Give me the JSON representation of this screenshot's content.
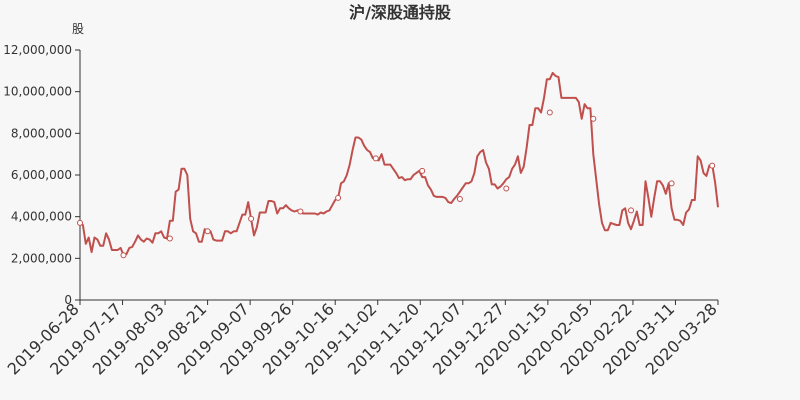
{
  "chart_data": {
    "type": "line",
    "title": "沪/深股通持股",
    "ylabel": "股",
    "ylim": [
      0,
      12000000
    ],
    "yticks": [
      0,
      2000000,
      4000000,
      6000000,
      8000000,
      10000000,
      12000000
    ],
    "ytick_labels": [
      "0",
      "2,000,000",
      "4,000,000",
      "6,000,000",
      "8,000,000",
      "10,000,000",
      "12,000,000"
    ],
    "x_tick_labels": [
      "2019-06-28",
      "2019-07-17",
      "2019-08-03",
      "2019-08-21",
      "2019-09-07",
      "2019-09-26",
      "2019-10-16",
      "2019-11-02",
      "2019-11-20",
      "2019-12-07",
      "2019-12-27",
      "2020-01-15",
      "2020-02-05",
      "2020-02-22",
      "2020-03-11",
      "2020-03-28"
    ],
    "grid": false,
    "line_color": "#c0504d",
    "series": [
      {
        "values": [
          3700000,
          3600000,
          2700000,
          3000000,
          2300000,
          3000000,
          2900000,
          2600000,
          2600000,
          3200000,
          2900000,
          2400000,
          2400000,
          2400000,
          2500000,
          2150000,
          2200000,
          2500000,
          2550000,
          2800000,
          3100000,
          2900000,
          2800000,
          2950000,
          2900000,
          2750000,
          3200000,
          3200000,
          3300000,
          3000000,
          2950000,
          3800000,
          3800000,
          5200000,
          5300000,
          6300000,
          6300000,
          6000000,
          3900000,
          3300000,
          3200000,
          2800000,
          2800000,
          3400000,
          3300000,
          3300000,
          2900000,
          2850000,
          2850000,
          2850000,
          3300000,
          3300000,
          3200000,
          3300000,
          3300000,
          3700000,
          4100000,
          4100000,
          4700000,
          3900000,
          3100000,
          3500000,
          4200000,
          4200000,
          4200000,
          4750000,
          4750000,
          4700000,
          4150000,
          4400000,
          4400000,
          4550000,
          4400000,
          4300000,
          4250000,
          4300000,
          4250000,
          4150000,
          4150000,
          4150000,
          4150000,
          4150000,
          4100000,
          4200000,
          4150000,
          4250000,
          4300000,
          4550000,
          4800000,
          4900000,
          5600000,
          5700000,
          6000000,
          6500000,
          7200000,
          7800000,
          7800000,
          7700000,
          7400000,
          7200000,
          7100000,
          6800000,
          6800000,
          6700000,
          7000000,
          6500000,
          6500000,
          6500000,
          6300000,
          6100000,
          5850000,
          5900000,
          5750000,
          5800000,
          5800000,
          6000000,
          6100000,
          6200000,
          5900000,
          5900000,
          5500000,
          5300000,
          5000000,
          4950000,
          4950000,
          4950000,
          4900000,
          4700000,
          4650000,
          4850000,
          5000000,
          5200000,
          5400000,
          5600000,
          5600000,
          5700000,
          6100000,
          6900000,
          7100000,
          7200000,
          6600000,
          6300000,
          5550000,
          5550000,
          5350000,
          5450000,
          5600000,
          5800000,
          5900000,
          6300000,
          6500000,
          6900000,
          6100000,
          6400000,
          7300000,
          8400000,
          8400000,
          9200000,
          9200000,
          9000000,
          9700000,
          10600000,
          10600000,
          10900000,
          10750000,
          10700000,
          9700000,
          9700000,
          9700000,
          9700000,
          9700000,
          9700000,
          9500000,
          8700000,
          9400000,
          9200000,
          9200000,
          7000000,
          5800000,
          4600000,
          3700000,
          3350000,
          3350000,
          3700000,
          3650000,
          3600000,
          3600000,
          4300000,
          4400000,
          3700000,
          3400000,
          3800000,
          4250000,
          3600000,
          3600000,
          5700000,
          4900000,
          4000000,
          4900000,
          5700000,
          5700000,
          5500000,
          5100000,
          5600000,
          4400000,
          3850000,
          3850000,
          3800000,
          3600000,
          4200000,
          4350000,
          4800000,
          4800000,
          6900000,
          6700000,
          6100000,
          5950000,
          6450000,
          6500000,
          5650000,
          4450000
        ]
      }
    ],
    "markers": [
      [
        0,
        3700000
      ],
      [
        15,
        2150000
      ],
      [
        31,
        2950000
      ],
      [
        44,
        3300000
      ],
      [
        59,
        3900000
      ],
      [
        76,
        4250000
      ],
      [
        89,
        4900000
      ],
      [
        102,
        6800000
      ],
      [
        118,
        6200000
      ],
      [
        131,
        4850000
      ],
      [
        147,
        5350000
      ],
      [
        162,
        9000000
      ],
      [
        177,
        8700000
      ],
      [
        190,
        4300000
      ],
      [
        204,
        5600000
      ],
      [
        218,
        6450000
      ]
    ]
  }
}
